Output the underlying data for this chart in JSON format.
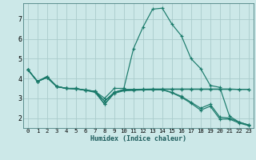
{
  "title": "",
  "xlabel": "Humidex (Indice chaleur)",
  "ylabel": "",
  "background_color": "#cce8e8",
  "grid_color": "#aacccc",
  "line_color": "#1a7a6a",
  "xlim": [
    -0.5,
    23.5
  ],
  "ylim": [
    1.5,
    7.8
  ],
  "yticks": [
    2,
    3,
    4,
    5,
    6,
    7
  ],
  "xticks": [
    0,
    1,
    2,
    3,
    4,
    5,
    6,
    7,
    8,
    9,
    10,
    11,
    12,
    13,
    14,
    15,
    16,
    17,
    18,
    19,
    20,
    21,
    22,
    23
  ],
  "xtick_labels": [
    "0",
    "1",
    "2",
    "3",
    "4",
    "5",
    "6",
    "7",
    "8",
    "9",
    "10",
    "11",
    "12",
    "13",
    "14",
    "15",
    "16",
    "17",
    "18",
    "19",
    "20",
    "21",
    "22",
    "23"
  ],
  "series": [
    [
      4.45,
      3.85,
      4.1,
      3.6,
      3.5,
      3.5,
      3.4,
      3.35,
      3.0,
      3.5,
      3.5,
      5.5,
      6.6,
      7.5,
      7.55,
      6.75,
      6.15,
      5.0,
      4.5,
      3.65,
      3.55,
      2.1,
      1.8,
      1.65
    ],
    [
      4.45,
      3.85,
      4.1,
      3.6,
      3.5,
      3.5,
      3.4,
      3.35,
      2.85,
      3.3,
      3.45,
      3.45,
      3.45,
      3.45,
      3.45,
      3.45,
      3.45,
      3.45,
      3.45,
      3.45,
      3.45,
      3.45,
      3.45,
      3.45
    ],
    [
      4.45,
      3.85,
      4.05,
      3.6,
      3.5,
      3.48,
      3.42,
      3.35,
      2.85,
      3.3,
      3.43,
      3.45,
      3.46,
      3.47,
      3.47,
      3.47,
      3.47,
      3.47,
      3.47,
      3.47,
      3.47,
      3.47,
      3.45,
      3.45
    ],
    [
      4.45,
      3.85,
      4.05,
      3.6,
      3.5,
      3.48,
      3.42,
      3.35,
      2.7,
      3.3,
      3.4,
      3.42,
      3.43,
      3.44,
      3.44,
      3.3,
      3.1,
      2.8,
      2.5,
      2.7,
      2.05,
      2.0,
      1.8,
      1.65
    ],
    [
      4.45,
      3.85,
      4.05,
      3.58,
      3.5,
      3.47,
      3.4,
      3.3,
      2.7,
      3.25,
      3.38,
      3.4,
      3.42,
      3.43,
      3.43,
      3.28,
      3.05,
      2.75,
      2.4,
      2.6,
      1.95,
      1.95,
      1.75,
      1.62
    ]
  ],
  "xlabel_fontsize": 6.0,
  "xlabel_color": "#1a5a5a",
  "tick_fontsize": 5.2
}
